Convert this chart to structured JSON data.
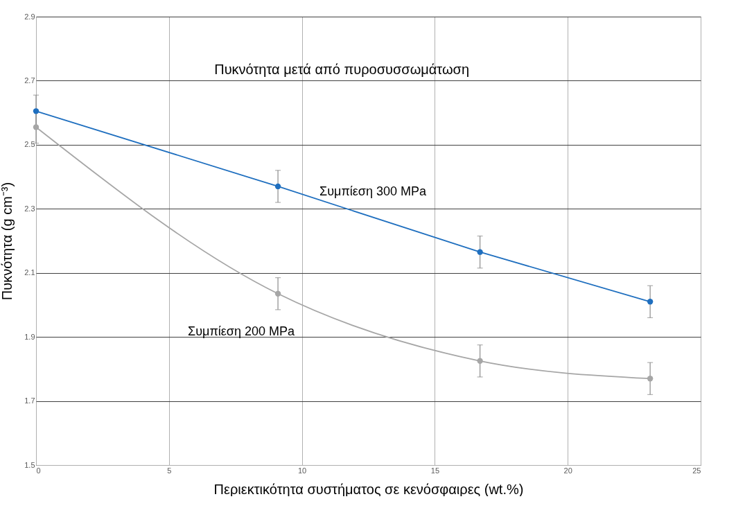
{
  "chart_data": {
    "type": "line",
    "title": "Πυκνότητα μετά από πυροσυσσωμάτωση",
    "xlabel": "Περιεκτικότητα συστήματος σε κενόσφαιρες (wt.%)",
    "ylabel": "Πυκνότητα (g cm⁻³)",
    "x": [
      0,
      9.1,
      16.7,
      23.1
    ],
    "series": [
      {
        "name": "Συμπίεση 300 MPa",
        "color": "#1f6fbf",
        "values": [
          2.605,
          2.37,
          2.165,
          2.01
        ],
        "errors": [
          0.05,
          0.05,
          0.05,
          0.05
        ]
      },
      {
        "name": "Συμπίεση 200 MPa",
        "color": "#a6a6a6",
        "values": [
          2.555,
          2.035,
          1.825,
          1.77
        ],
        "errors": [
          0.05,
          0.05,
          0.05,
          0.05
        ]
      }
    ],
    "xlim": [
      0,
      25
    ],
    "xticks": [
      0,
      5,
      10,
      15,
      20,
      25
    ],
    "ylim": [
      1.5,
      2.9
    ],
    "yticks": [
      1.5,
      1.7,
      1.9,
      2.1,
      2.3,
      2.5,
      2.7,
      2.9
    ],
    "grid": true,
    "marker": "circle",
    "line_style": "solid"
  }
}
